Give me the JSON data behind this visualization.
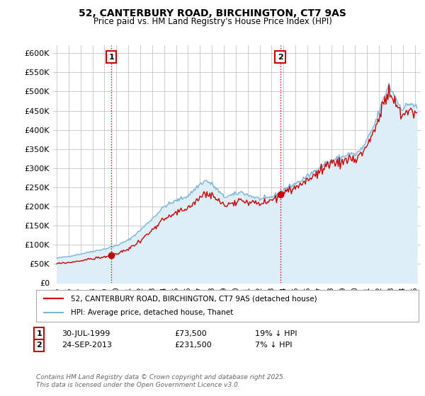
{
  "title": "52, CANTERBURY ROAD, BIRCHINGTON, CT7 9AS",
  "subtitle": "Price paid vs. HM Land Registry's House Price Index (HPI)",
  "ylim": [
    0,
    620000
  ],
  "ytick_vals": [
    0,
    50000,
    100000,
    150000,
    200000,
    250000,
    300000,
    350000,
    400000,
    450000,
    500000,
    550000,
    600000
  ],
  "hpi_color": "#7ab4d8",
  "hpi_fill_color": "#ddeef7",
  "price_color": "#cc0000",
  "marker1_year": 1999.58,
  "marker1_price": 73500,
  "marker2_year": 2013.73,
  "marker2_price": 231500,
  "vline_color": "#cc0000",
  "legend_label1": "52, CANTERBURY ROAD, BIRCHINGTON, CT7 9AS (detached house)",
  "legend_label2": "HPI: Average price, detached house, Thanet",
  "table_row1": [
    "1",
    "30-JUL-1999",
    "£73,500",
    "19% ↓ HPI"
  ],
  "table_row2": [
    "2",
    "24-SEP-2013",
    "£231,500",
    "7% ↓ HPI"
  ],
  "footer": "Contains HM Land Registry data © Crown copyright and database right 2025.\nThis data is licensed under the Open Government Licence v3.0.",
  "bg_color": "#ffffff",
  "grid_color": "#cccccc",
  "xlim_left": 1994.7,
  "xlim_right": 2025.5
}
